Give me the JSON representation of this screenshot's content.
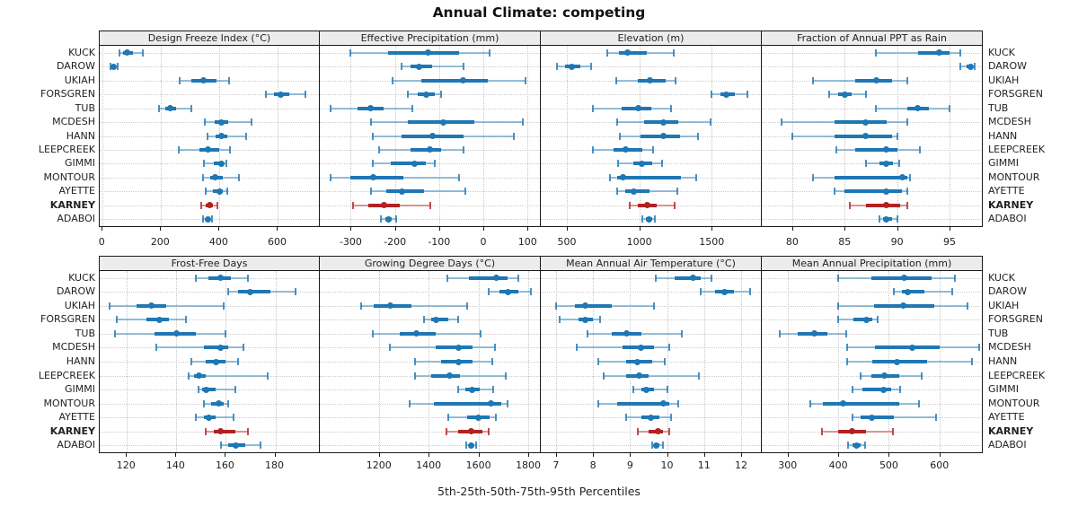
{
  "title": "Annual Climate: competing",
  "caption": "5th-25th-50th-75th-95th Percentiles",
  "colors": {
    "series": "#1f77b4",
    "series_light": "rgba(31,119,180,0.45)",
    "series_cap": "rgba(31,119,180,0.8)",
    "highlight": "#b22222",
    "highlight_light": "rgba(178,34,34,0.45)",
    "highlight_cap": "rgba(178,34,34,0.8)",
    "strip_bg": "#ececec",
    "panel_border": "#1a1a1a",
    "grid": "#c9c9c9"
  },
  "stations": [
    "KUCK",
    "DAROW",
    "UKIAH",
    "FORSGREN",
    "TUB",
    "MCDESH",
    "HANN",
    "LEEPCREEK",
    "GIMMI",
    "MONTOUR",
    "AYETTE",
    "KARNEY",
    "ADABOI"
  ],
  "highlight_station": "KARNEY",
  "chart_data": {
    "type": "scatter",
    "subtype": "percentile-interval-dotplot",
    "percentiles": [
      5,
      25,
      50,
      75,
      95
    ],
    "grid_layout": {
      "rows": 2,
      "cols": 4
    },
    "legend": "none",
    "panels": [
      {
        "title": "Design Freeze Index (°C)",
        "ticks": [
          0,
          200,
          400,
          600
        ],
        "domain": [
          -10,
          740
        ],
        "values": [
          [
            58,
            70,
            85,
            103,
            137
          ],
          [
            28,
            33,
            38,
            43,
            50
          ],
          [
            265,
            305,
            345,
            390,
            432
          ],
          [
            558,
            585,
            610,
            640,
            695
          ],
          [
            193,
            215,
            230,
            252,
            303
          ],
          [
            350,
            382,
            405,
            430,
            510
          ],
          [
            360,
            385,
            405,
            428,
            490
          ],
          [
            262,
            330,
            360,
            400,
            435
          ],
          [
            348,
            380,
            405,
            415,
            422
          ],
          [
            345,
            368,
            385,
            410,
            465
          ],
          [
            352,
            378,
            400,
            412,
            428
          ],
          [
            338,
            352,
            365,
            378,
            392
          ],
          [
            345,
            352,
            360,
            368,
            375
          ]
        ]
      },
      {
        "title": "Effective Precipitation (mm)",
        "ticks": [
          -300,
          -200,
          -100,
          0,
          100
        ],
        "domain": [
          -370,
          126
        ],
        "values": [
          [
            -300,
            -215,
            -125,
            -55,
            15
          ],
          [
            -185,
            -165,
            -145,
            -115,
            -45
          ],
          [
            -205,
            -140,
            -45,
            10,
            95
          ],
          [
            -170,
            -148,
            -130,
            -110,
            -95
          ],
          [
            -345,
            -285,
            -255,
            -225,
            -160
          ],
          [
            -255,
            -170,
            -90,
            -20,
            90
          ],
          [
            -250,
            -185,
            -115,
            -45,
            70
          ],
          [
            -235,
            -165,
            -120,
            -95,
            -45
          ],
          [
            -250,
            -210,
            -155,
            -130,
            -110
          ],
          [
            -345,
            -300,
            -250,
            -180,
            -55
          ],
          [
            -255,
            -220,
            -185,
            -135,
            -40
          ],
          [
            -295,
            -260,
            -225,
            -190,
            -120
          ],
          [
            -232,
            -222,
            -215,
            -207,
            -198
          ]
        ]
      },
      {
        "title": "Elevation (m)",
        "ticks": [
          500,
          1000,
          1500
        ],
        "domain": [
          320,
          1833
        ],
        "values": [
          [
            780,
            860,
            920,
            1050,
            1240
          ],
          [
            430,
            490,
            535,
            590,
            665
          ],
          [
            840,
            990,
            1075,
            1180,
            1250
          ],
          [
            1500,
            1560,
            1600,
            1660,
            1745
          ],
          [
            680,
            880,
            990,
            1080,
            1220
          ],
          [
            850,
            1030,
            1165,
            1270,
            1495
          ],
          [
            865,
            1010,
            1165,
            1280,
            1405
          ],
          [
            680,
            820,
            905,
            1020,
            1095
          ],
          [
            855,
            960,
            1015,
            1090,
            1160
          ],
          [
            800,
            850,
            890,
            1290,
            1390
          ],
          [
            845,
            900,
            960,
            1070,
            1260
          ],
          [
            935,
            990,
            1055,
            1120,
            1245
          ],
          [
            1020,
            1045,
            1070,
            1090,
            1110
          ]
        ]
      },
      {
        "title": "Fraction of Annual PPT as Rain",
        "ticks": [
          80,
          85,
          90,
          95
        ],
        "domain": [
          77.1,
          98
        ],
        "values": [
          [
            88,
            92,
            94,
            95,
            96
          ],
          [
            96,
            96.6,
            97,
            97.2,
            97.4
          ],
          [
            82,
            86,
            88,
            89.5,
            91
          ],
          [
            83.5,
            84.4,
            85,
            85.7,
            87
          ],
          [
            88,
            91,
            92,
            93,
            95
          ],
          [
            79,
            84,
            87,
            89,
            91
          ],
          [
            80,
            84,
            87,
            89.5,
            90
          ],
          [
            84.2,
            86,
            89,
            90,
            92.2
          ],
          [
            87,
            88.3,
            89,
            89.6,
            90.2
          ],
          [
            82,
            84,
            90.5,
            91,
            91.2
          ],
          [
            84,
            85,
            89,
            90.5,
            91
          ],
          [
            85.5,
            87,
            89,
            90.3,
            91
          ],
          [
            88.3,
            88.7,
            89,
            89.5,
            90
          ]
        ]
      },
      {
        "title": "Frost-Free Days",
        "ticks": [
          120,
          140,
          160,
          180
        ],
        "domain": [
          109,
          197.6
        ],
        "values": [
          [
            148,
            153,
            158,
            162,
            169
          ],
          [
            161,
            165,
            170,
            178,
            188
          ],
          [
            113,
            124,
            130,
            136,
            159
          ],
          [
            116,
            128,
            133,
            137,
            144
          ],
          [
            115,
            131,
            140,
            148,
            160
          ],
          [
            132,
            151,
            158,
            161,
            167
          ],
          [
            146,
            152,
            156,
            160,
            165
          ],
          [
            145,
            147,
            149,
            152,
            177
          ],
          [
            149,
            150.5,
            152,
            156,
            164
          ],
          [
            151,
            154,
            157,
            159,
            161
          ],
          [
            148,
            151,
            153,
            156,
            163
          ],
          [
            152,
            155,
            158,
            164,
            169
          ],
          [
            158,
            161,
            164,
            168,
            174
          ]
        ]
      },
      {
        "title": "Growing Degree Days (°C)",
        "ticks": [
          1200,
          1400,
          1600,
          1800
        ],
        "domain": [
          963,
          1843
        ],
        "values": [
          [
            1475,
            1560,
            1670,
            1715,
            1760
          ],
          [
            1640,
            1685,
            1720,
            1760,
            1810
          ],
          [
            1130,
            1180,
            1245,
            1330,
            1555
          ],
          [
            1380,
            1410,
            1430,
            1480,
            1520
          ],
          [
            1175,
            1285,
            1350,
            1430,
            1610
          ],
          [
            1245,
            1430,
            1520,
            1575,
            1665
          ],
          [
            1345,
            1450,
            1520,
            1575,
            1655
          ],
          [
            1345,
            1410,
            1485,
            1525,
            1710
          ],
          [
            1520,
            1548,
            1575,
            1605,
            1660
          ],
          [
            1325,
            1420,
            1650,
            1690,
            1715
          ],
          [
            1480,
            1555,
            1600,
            1645,
            1670
          ],
          [
            1470,
            1520,
            1570,
            1615,
            1640
          ],
          [
            1550,
            1560,
            1570,
            1580,
            1590
          ]
        ]
      },
      {
        "title": "Mean Annual Air Temperature (°C)",
        "ticks": [
          7,
          8,
          9,
          10,
          11,
          12
        ],
        "domain": [
          6.59,
          12.51
        ],
        "values": [
          [
            9.7,
            10.2,
            10.7,
            10.9,
            11.2
          ],
          [
            10.9,
            11.3,
            11.55,
            11.8,
            12.25
          ],
          [
            7.0,
            7.5,
            7.8,
            8.5,
            9.65
          ],
          [
            7.1,
            7.6,
            7.8,
            8.0,
            8.2
          ],
          [
            7.85,
            8.5,
            8.9,
            9.3,
            10.4
          ],
          [
            7.55,
            8.8,
            9.3,
            9.65,
            10.05
          ],
          [
            8.15,
            8.9,
            9.2,
            9.6,
            9.95
          ],
          [
            8.3,
            8.9,
            9.25,
            9.5,
            10.85
          ],
          [
            9.1,
            9.3,
            9.45,
            9.65,
            10.0
          ],
          [
            8.15,
            8.65,
            9.9,
            10.05,
            10.3
          ],
          [
            8.9,
            9.3,
            9.55,
            9.8,
            10.1
          ],
          [
            9.2,
            9.5,
            9.75,
            9.9,
            10.05
          ],
          [
            9.6,
            9.65,
            9.7,
            9.8,
            9.9
          ]
        ]
      },
      {
        "title": "Mean Annual Precipitation (mm)",
        "ticks": [
          300,
          400,
          500,
          600
        ],
        "domain": [
          249,
          682
        ],
        "values": [
          [
            400,
            465,
            530,
            585,
            630
          ],
          [
            510,
            525,
            537,
            570,
            625
          ],
          [
            400,
            470,
            528,
            590,
            655
          ],
          [
            400,
            430,
            455,
            467,
            478
          ],
          [
            285,
            320,
            352,
            378,
            415
          ],
          [
            418,
            472,
            547,
            600,
            678
          ],
          [
            418,
            467,
            516,
            575,
            665
          ],
          [
            445,
            465,
            492,
            520,
            565
          ],
          [
            428,
            448,
            490,
            505,
            523
          ],
          [
            345,
            370,
            410,
            520,
            560
          ],
          [
            428,
            445,
            466,
            510,
            593
          ],
          [
            368,
            400,
            428,
            455,
            508
          ],
          [
            420,
            428,
            437,
            445,
            453
          ]
        ]
      }
    ]
  }
}
